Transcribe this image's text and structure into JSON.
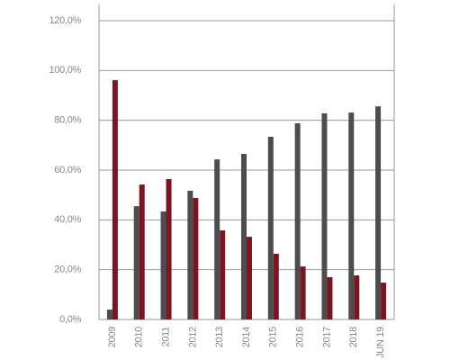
{
  "chart_data": {
    "type": "bar",
    "categories": [
      "2009",
      "2010",
      "2011",
      "2012",
      "2013",
      "2014",
      "2015",
      "2016",
      "2017",
      "2018",
      "JUN 19"
    ],
    "series": [
      {
        "color": "#4d4d4d",
        "values": [
          4,
          45.5,
          43.4,
          51.7,
          64.3,
          66.5,
          73.4,
          78.8,
          82.8,
          83.1,
          85.6
        ]
      },
      {
        "color": "#7b1522",
        "values": [
          96.1,
          54.2,
          56.4,
          48.8,
          35.8,
          33.2,
          26.4,
          21.3,
          17,
          17.7,
          14.8
        ]
      }
    ],
    "ylim": [
      0,
      120
    ],
    "yticks": [
      {
        "value": 0,
        "label": "0,0%"
      },
      {
        "value": 20,
        "label": "20,0%"
      },
      {
        "value": 40,
        "label": "40,0%"
      },
      {
        "value": 60,
        "label": "60,0%"
      },
      {
        "value": 80,
        "label": "80,0%"
      },
      {
        "value": 100,
        "label": "100,0%"
      },
      {
        "value": 120,
        "label": "120,0%"
      }
    ],
    "grid": true
  }
}
